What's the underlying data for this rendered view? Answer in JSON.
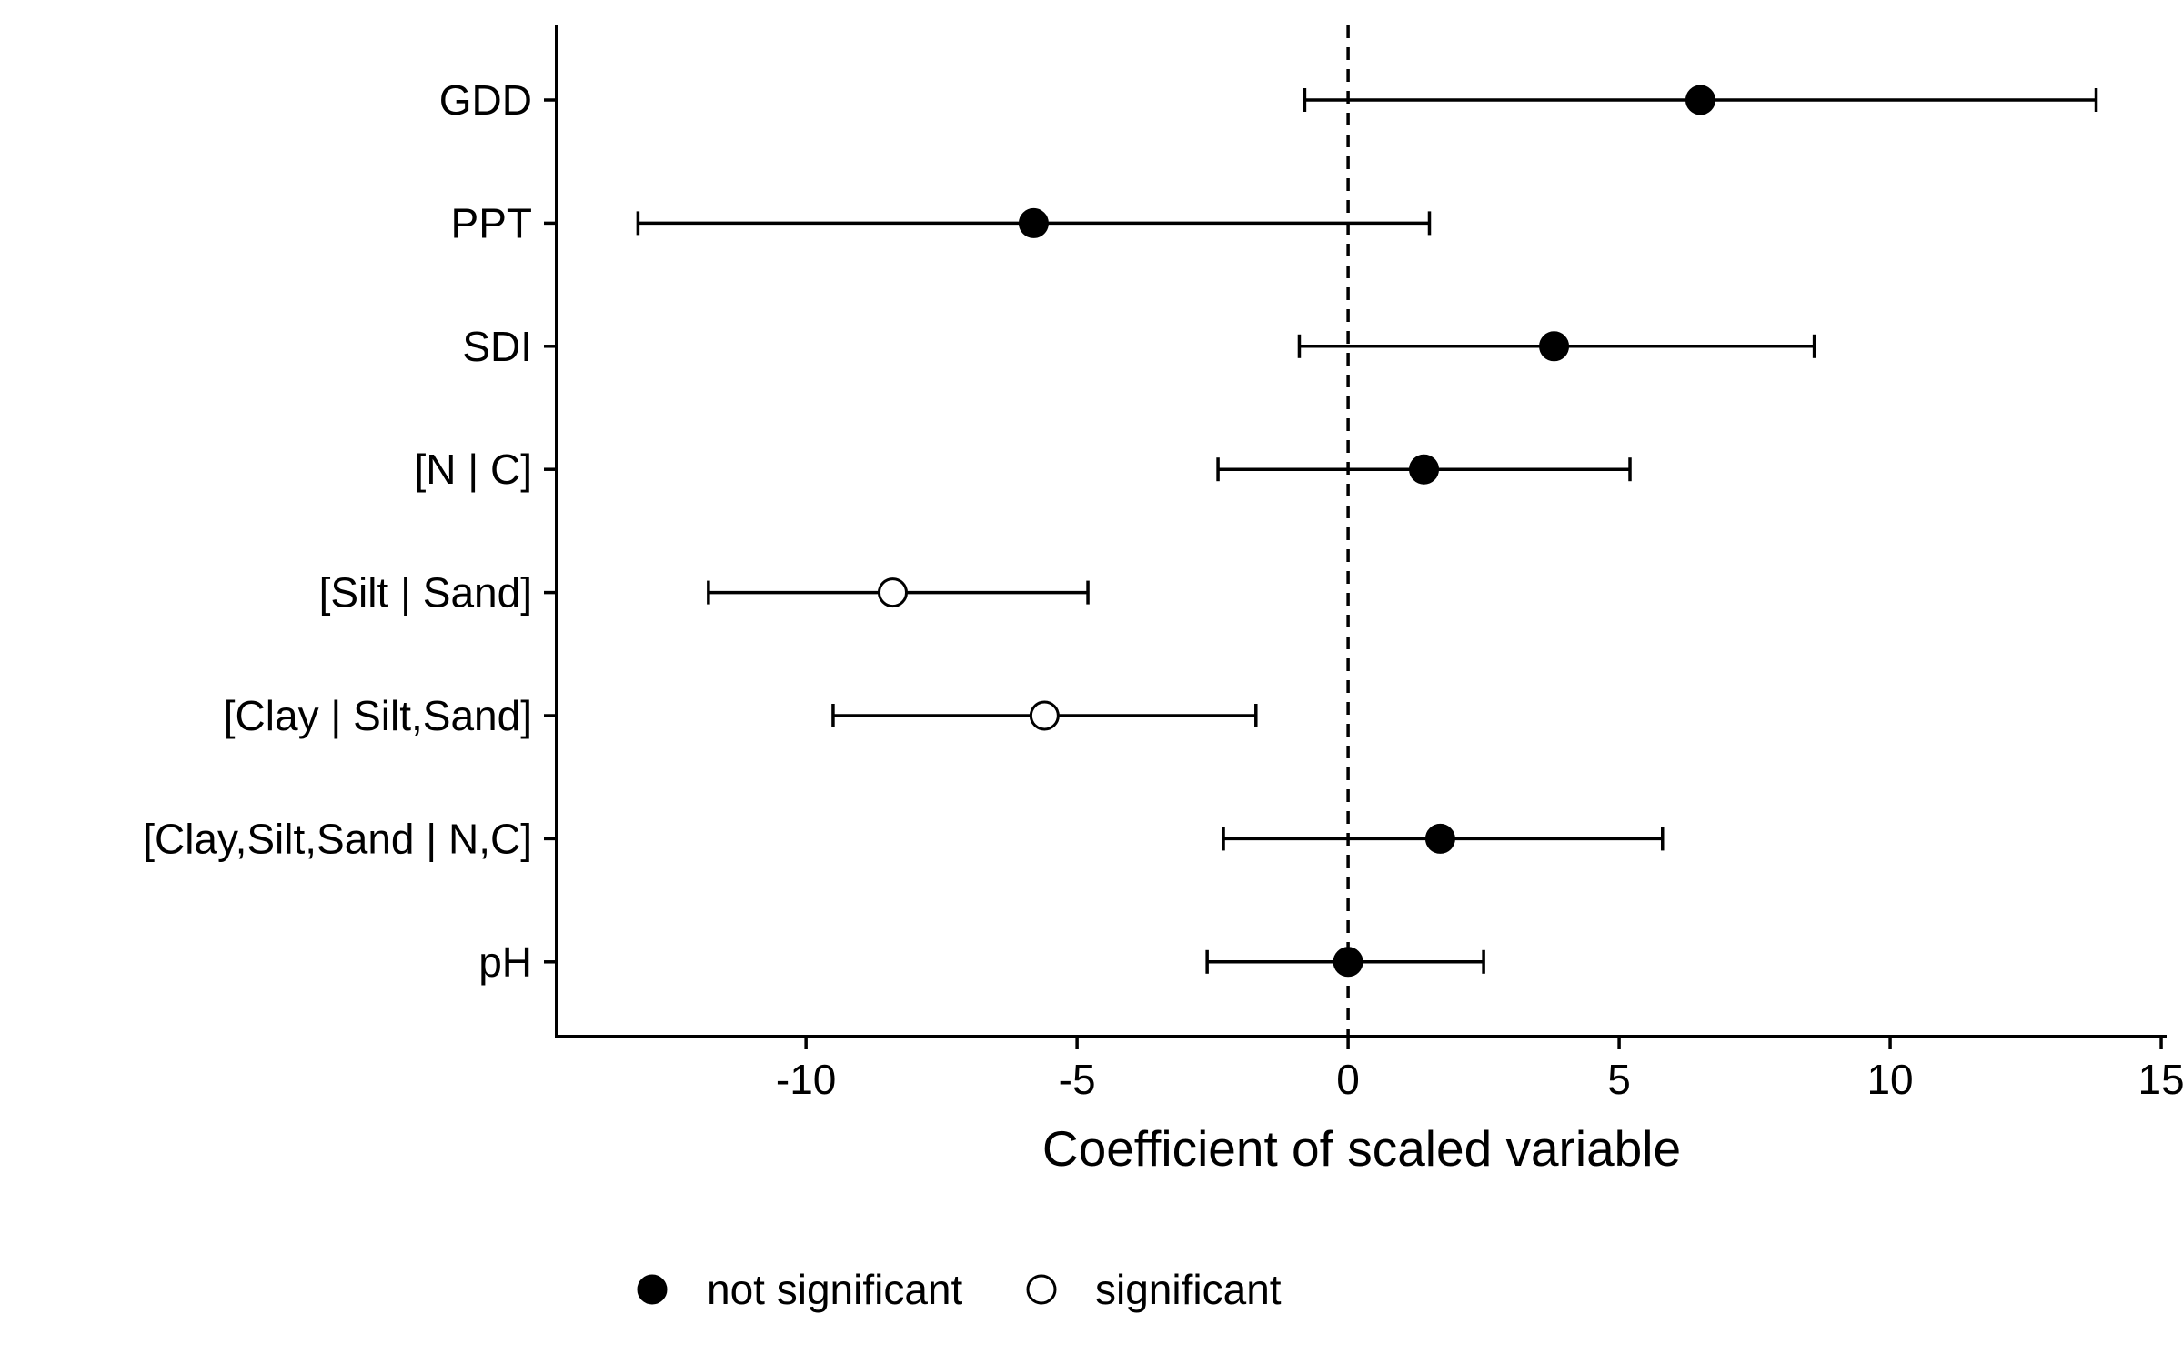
{
  "chart_data": {
    "type": "scatter",
    "subtype": "forest-plot",
    "xlabel": "Coefficient of scaled variable",
    "ylabel": "",
    "xlim": [
      -14.6,
      15.1
    ],
    "xticks": [
      -10,
      -5,
      0,
      5,
      10,
      15
    ],
    "xtick_labels": [
      "-10",
      "-5",
      "0",
      "5",
      "10",
      "15"
    ],
    "reference_line": {
      "x": 0,
      "style": "dashed"
    },
    "grid": false,
    "legend_position": "bottom",
    "legend": [
      {
        "key": "not_significant",
        "label": "not significant",
        "marker": "filled-circle"
      },
      {
        "key": "significant",
        "label": "significant",
        "marker": "open-circle"
      }
    ],
    "series": [
      {
        "label": "GDD",
        "estimate": 6.5,
        "lower": -0.8,
        "upper": 13.8,
        "group": "not_significant"
      },
      {
        "label": "PPT",
        "estimate": -5.8,
        "lower": -13.1,
        "upper": 1.5,
        "group": "not_significant"
      },
      {
        "label": "SDI",
        "estimate": 3.8,
        "lower": -0.9,
        "upper": 8.6,
        "group": "not_significant"
      },
      {
        "label": "[N | C]",
        "estimate": 1.4,
        "lower": -2.4,
        "upper": 5.2,
        "group": "not_significant"
      },
      {
        "label": "[Silt | Sand]",
        "estimate": -8.4,
        "lower": -11.8,
        "upper": -4.8,
        "group": "significant"
      },
      {
        "label": "[Clay | Silt,Sand]",
        "estimate": -5.6,
        "lower": -9.5,
        "upper": -1.7,
        "group": "significant"
      },
      {
        "label": "[Clay,Silt,Sand | N,C]",
        "estimate": 1.7,
        "lower": -2.3,
        "upper": 5.8,
        "group": "not_significant"
      },
      {
        "label": "pH",
        "estimate": 0.0,
        "lower": -2.6,
        "upper": 2.5,
        "group": "not_significant"
      }
    ]
  }
}
